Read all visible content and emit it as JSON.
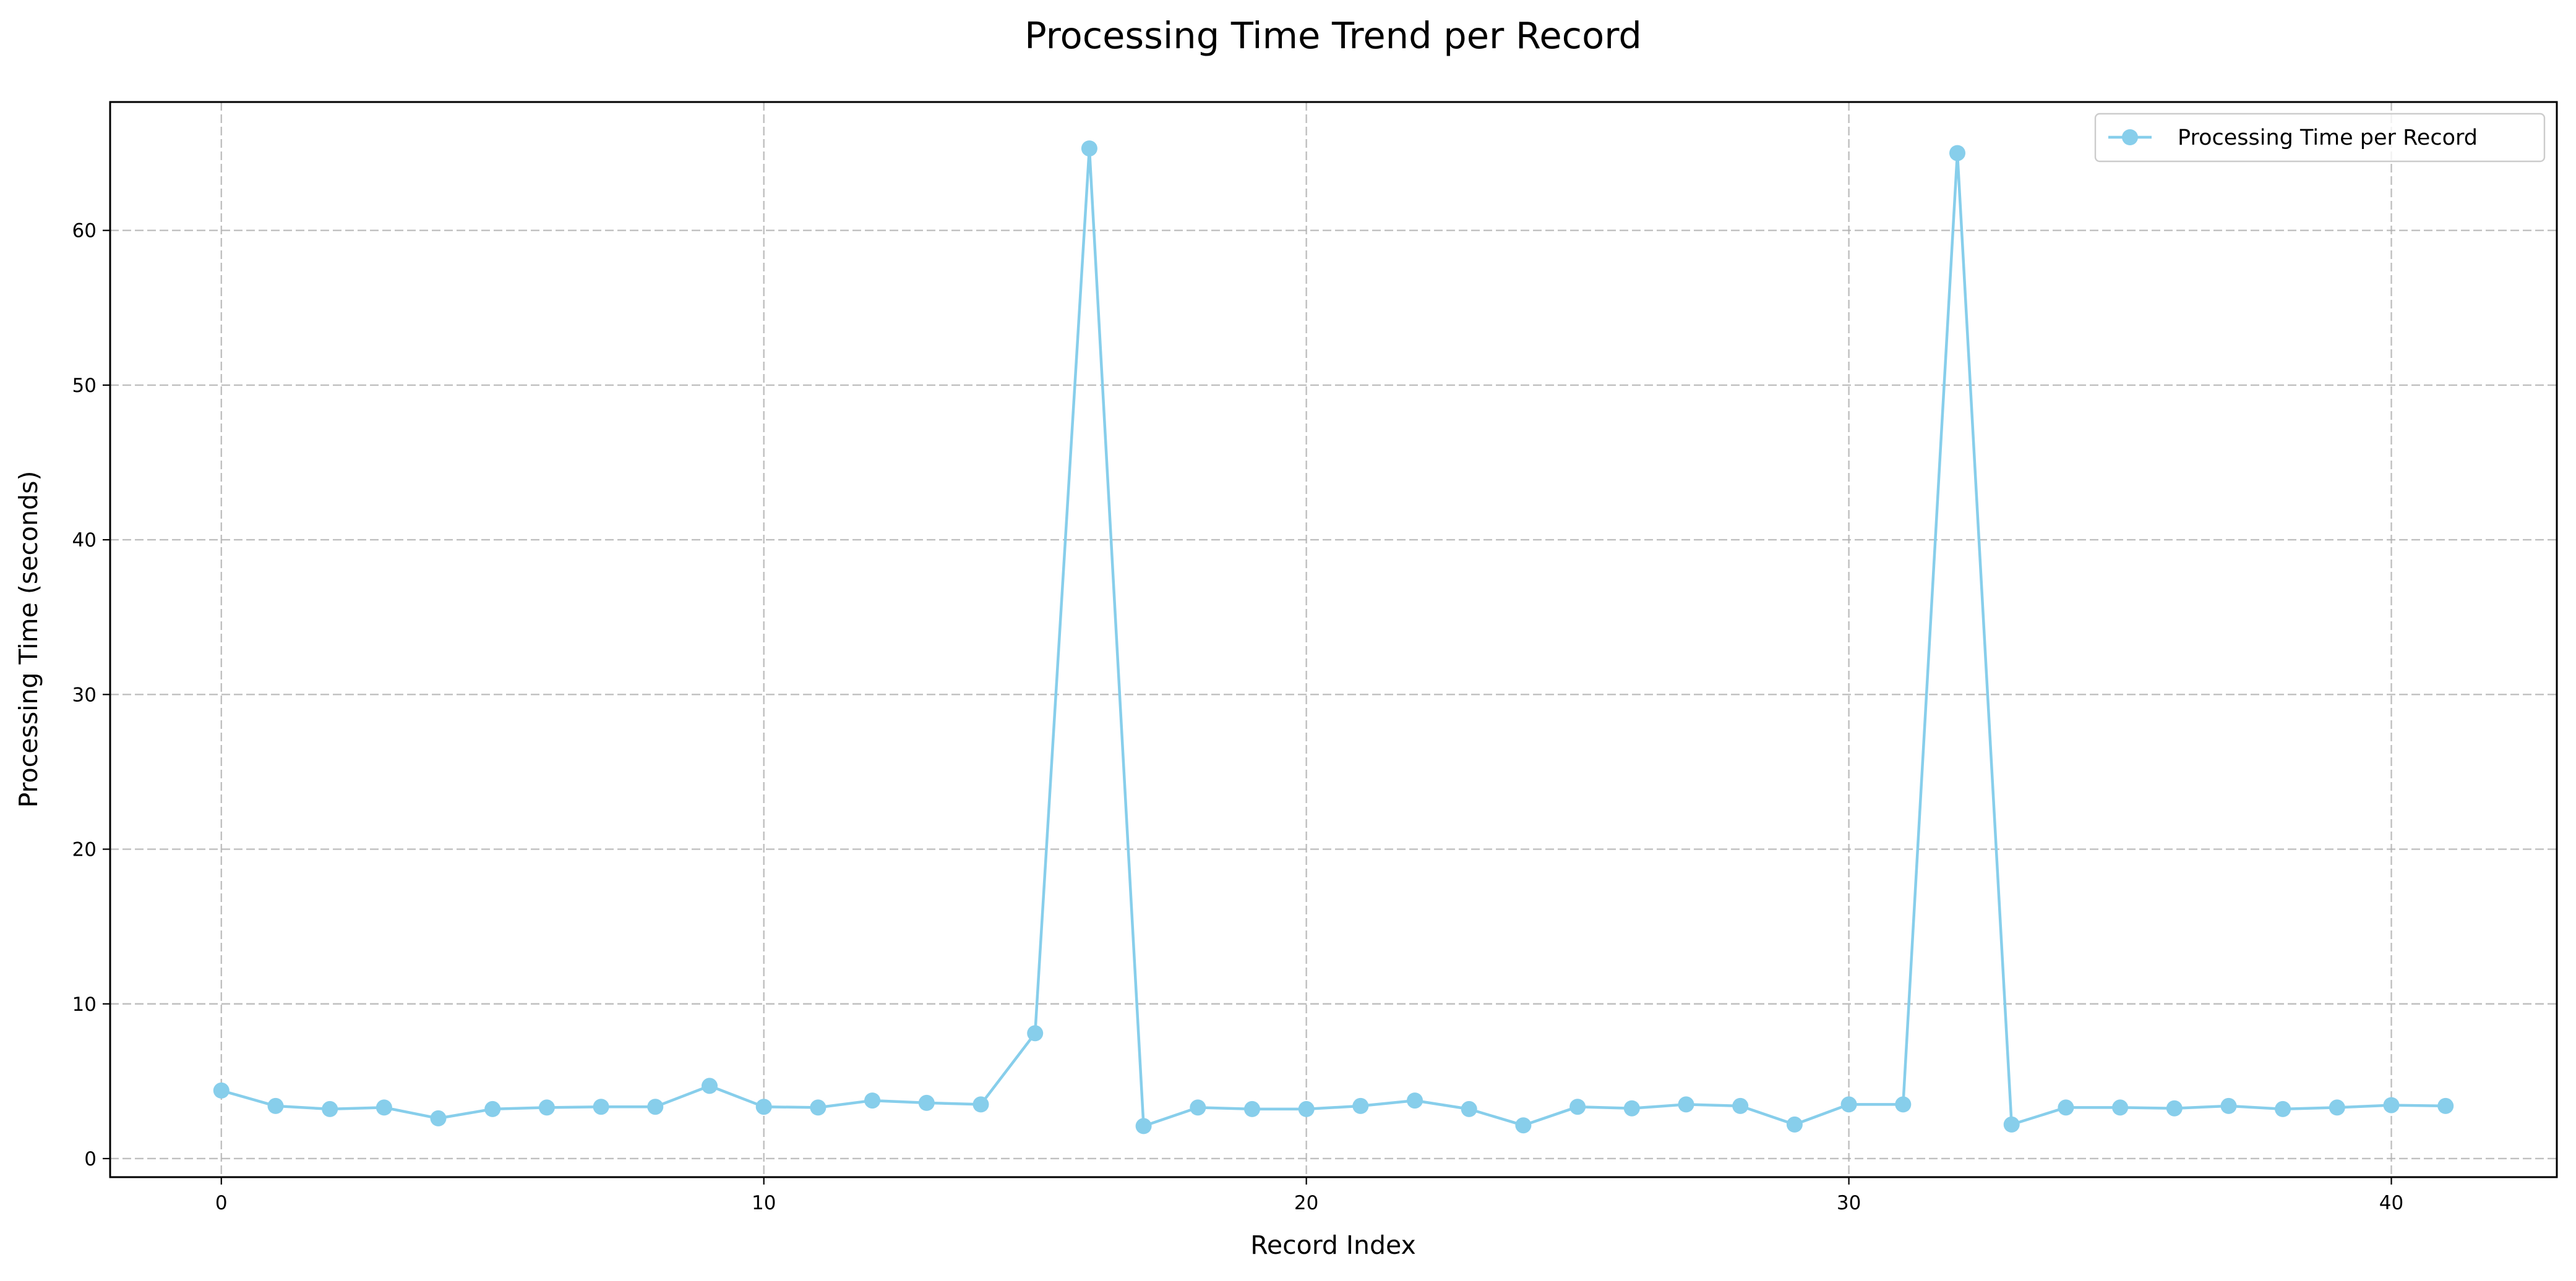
{
  "chart_data": {
    "type": "line",
    "title": "Processing Time Trend per Record",
    "xlabel": "Record Index",
    "ylabel": "Processing Time (seconds)",
    "xlim": [
      -2.05,
      43.05
    ],
    "ylim": [
      -1.2,
      68.3
    ],
    "xticks": [
      0,
      10,
      20,
      30,
      40
    ],
    "yticks": [
      0,
      10,
      20,
      30,
      40,
      50,
      60
    ],
    "grid": true,
    "legend_position": "top-right",
    "series": [
      {
        "name": "Processing Time per Record",
        "color": "#87ceeb",
        "marker": "circle",
        "x": [
          0,
          1,
          2,
          3,
          4,
          5,
          6,
          7,
          8,
          9,
          10,
          11,
          12,
          13,
          14,
          15,
          16,
          17,
          18,
          19,
          20,
          21,
          22,
          23,
          24,
          25,
          26,
          27,
          28,
          29,
          30,
          31,
          32,
          33,
          34,
          35,
          36,
          37,
          38,
          39,
          40,
          41
        ],
        "y": [
          4.4,
          3.4,
          3.2,
          3.3,
          2.6,
          3.2,
          3.3,
          3.35,
          3.35,
          4.7,
          3.35,
          3.3,
          3.75,
          3.6,
          3.5,
          8.1,
          65.3,
          2.1,
          3.3,
          3.2,
          3.2,
          3.4,
          3.75,
          3.2,
          2.15,
          3.35,
          3.25,
          3.5,
          3.4,
          2.2,
          3.5,
          3.5,
          65.0,
          2.2,
          3.3,
          3.3,
          3.25,
          3.4,
          3.2,
          3.3,
          3.45,
          3.4
        ]
      }
    ]
  }
}
